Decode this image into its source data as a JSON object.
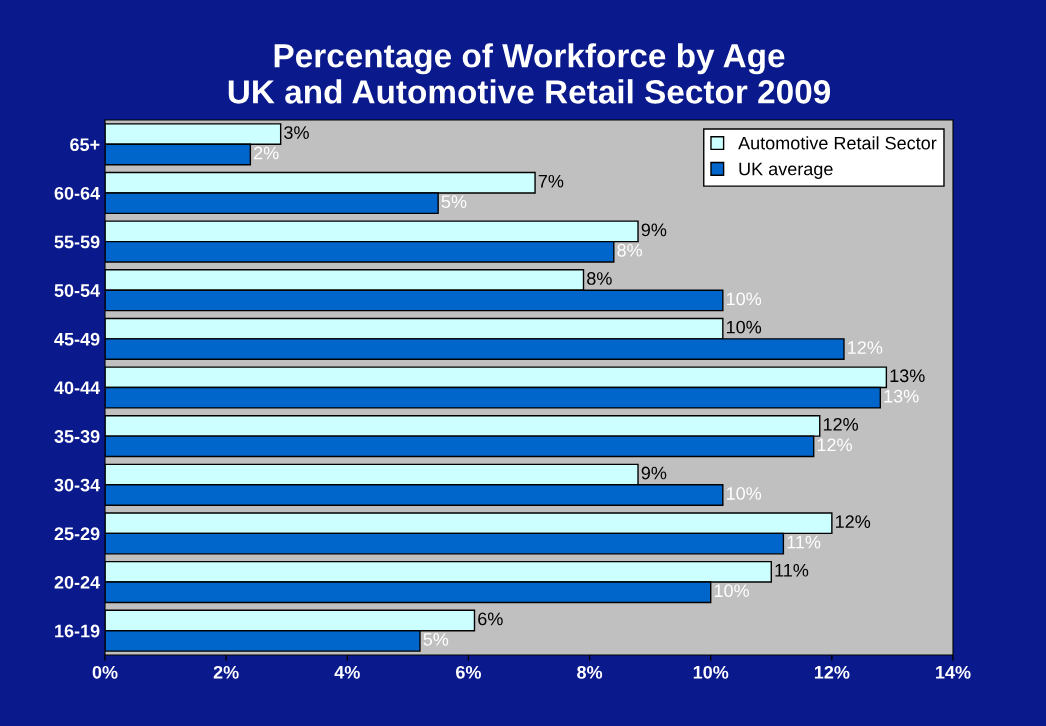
{
  "chart_data": {
    "type": "bar",
    "orientation": "horizontal",
    "title": "Percentage of Workforce by Age\nUK and Automotive Retail Sector 2009",
    "categories": [
      "65+",
      "60-64",
      "55-59",
      "50-54",
      "45-49",
      "40-44",
      "35-39",
      "30-34",
      "25-29",
      "20-24",
      "16-19"
    ],
    "series": [
      {
        "name": "Automotive Retail Sector",
        "color": "#ccffff",
        "values": [
          2.9,
          7.1,
          8.8,
          7.9,
          10.2,
          12.9,
          11.8,
          8.8,
          12.0,
          11.0,
          6.1
        ],
        "value_labels": [
          "3%",
          "7%",
          "9%",
          "8%",
          "10%",
          "13%",
          "12%",
          "9%",
          "12%",
          "11%",
          "6%"
        ]
      },
      {
        "name": "UK average",
        "color": "#0066cc",
        "values": [
          2.4,
          5.5,
          8.4,
          10.2,
          12.2,
          12.8,
          11.7,
          10.2,
          11.2,
          10.0,
          5.2
        ],
        "value_labels": [
          "2%",
          "5%",
          "8%",
          "10%",
          "12%",
          "13%",
          "12%",
          "10%",
          "11%",
          "10%",
          "5%"
        ]
      }
    ],
    "xlim": [
      0,
      14
    ],
    "xticks": [
      {
        "value": 0,
        "label": "0%"
      },
      {
        "value": 2,
        "label": "2%"
      },
      {
        "value": 4,
        "label": "4%"
      },
      {
        "value": 6,
        "label": "6%"
      },
      {
        "value": 8,
        "label": "8%"
      },
      {
        "value": 10,
        "label": "10%"
      },
      {
        "value": 12,
        "label": "12%"
      },
      {
        "value": 14,
        "label": "14%"
      }
    ],
    "grid": false,
    "legend": "top right"
  }
}
